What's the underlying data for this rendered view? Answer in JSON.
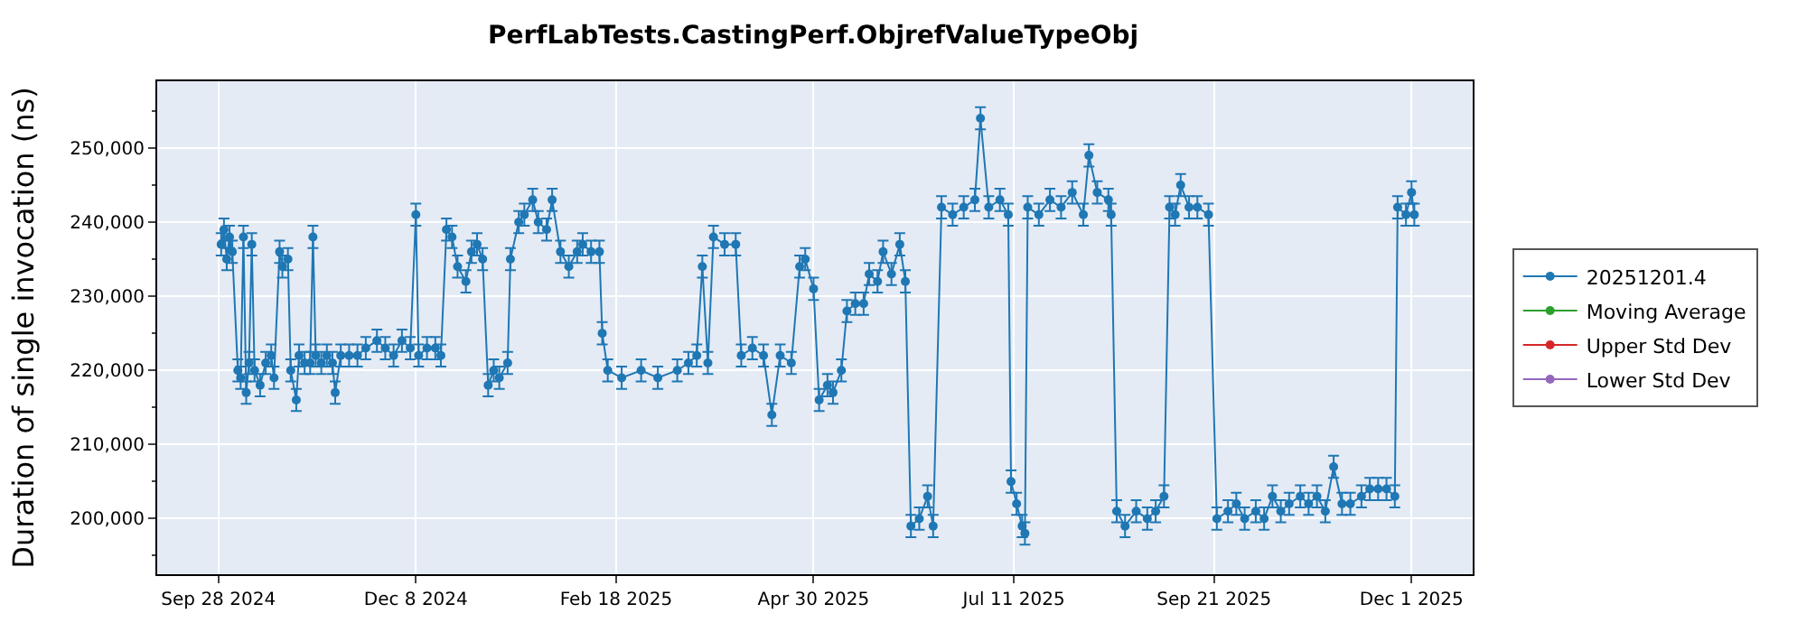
{
  "chart_data": {
    "type": "line",
    "title": "PerfLabTests.CastingPerf.ObjrefValueTypeObj",
    "ylabel": "Duration of single invocation (ns)",
    "x": [
      "2024-09-29",
      "2024-09-30",
      "2024-10-01",
      "2024-10-02",
      "2024-10-03",
      "2024-10-05",
      "2024-10-06",
      "2024-10-07",
      "2024-10-08",
      "2024-10-09",
      "2024-10-10",
      "2024-10-11",
      "2024-10-13",
      "2024-10-15",
      "2024-10-17",
      "2024-10-18",
      "2024-10-20",
      "2024-10-21",
      "2024-10-23",
      "2024-10-24",
      "2024-10-26",
      "2024-10-27",
      "2024-10-29",
      "2024-10-31",
      "2024-11-01",
      "2024-11-02",
      "2024-11-04",
      "2024-11-06",
      "2024-11-08",
      "2024-11-09",
      "2024-11-11",
      "2024-11-14",
      "2024-11-17",
      "2024-11-20",
      "2024-11-24",
      "2024-11-27",
      "2024-11-30",
      "2024-12-03",
      "2024-12-06",
      "2024-12-08",
      "2024-12-09",
      "2024-12-12",
      "2024-12-15",
      "2024-12-17",
      "2024-12-19",
      "2024-12-21",
      "2024-12-23",
      "2024-12-26",
      "2024-12-28",
      "2024-12-30",
      "2025-01-01",
      "2025-01-03",
      "2025-01-05",
      "2025-01-07",
      "2025-01-10",
      "2025-01-11",
      "2025-01-14",
      "2025-01-16",
      "2025-01-19",
      "2025-01-21",
      "2025-01-24",
      "2025-01-26",
      "2025-01-29",
      "2025-02-01",
      "2025-02-04",
      "2025-02-06",
      "2025-02-09",
      "2025-02-12",
      "2025-02-13",
      "2025-02-15",
      "2025-02-20",
      "2025-02-27",
      "2025-03-05",
      "2025-03-12",
      "2025-03-16",
      "2025-03-19",
      "2025-03-21",
      "2025-03-23",
      "2025-03-25",
      "2025-03-29",
      "2025-04-02",
      "2025-04-04",
      "2025-04-08",
      "2025-04-12",
      "2025-04-15",
      "2025-04-18",
      "2025-04-22",
      "2025-04-25",
      "2025-04-27",
      "2025-04-30",
      "2025-05-02",
      "2025-05-05",
      "2025-05-07",
      "2025-05-10",
      "2025-05-12",
      "2025-05-15",
      "2025-05-18",
      "2025-05-20",
      "2025-05-23",
      "2025-05-25",
      "2025-05-28",
      "2025-05-31",
      "2025-06-02",
      "2025-06-04",
      "2025-06-07",
      "2025-06-10",
      "2025-06-12",
      "2025-06-15",
      "2025-06-19",
      "2025-06-23",
      "2025-06-27",
      "2025-06-29",
      "2025-07-02",
      "2025-07-06",
      "2025-07-09",
      "2025-07-10",
      "2025-07-12",
      "2025-07-14",
      "2025-07-15",
      "2025-07-16",
      "2025-07-20",
      "2025-07-24",
      "2025-07-28",
      "2025-08-01",
      "2025-08-05",
      "2025-08-07",
      "2025-08-10",
      "2025-08-14",
      "2025-08-15",
      "2025-08-17",
      "2025-08-20",
      "2025-08-24",
      "2025-08-28",
      "2025-08-31",
      "2025-09-03",
      "2025-09-05",
      "2025-09-07",
      "2025-09-09",
      "2025-09-12",
      "2025-09-15",
      "2025-09-19",
      "2025-09-22",
      "2025-09-26",
      "2025-09-29",
      "2025-10-02",
      "2025-10-06",
      "2025-10-09",
      "2025-10-12",
      "2025-10-15",
      "2025-10-18",
      "2025-10-22",
      "2025-10-25",
      "2025-10-28",
      "2025-10-31",
      "2025-11-03",
      "2025-11-06",
      "2025-11-09",
      "2025-11-13",
      "2025-11-16",
      "2025-11-19",
      "2025-11-22",
      "2025-11-25",
      "2025-11-26",
      "2025-11-29",
      "2025-12-01",
      "2025-12-02"
    ],
    "series": [
      {
        "name": "20251201.4",
        "color": "#1f77b4",
        "values": [
          237000,
          239000,
          235000,
          238000,
          236000,
          220000,
          219000,
          238000,
          217000,
          221000,
          237000,
          220000,
          218000,
          221000,
          222000,
          219000,
          236000,
          234000,
          235000,
          220000,
          216000,
          222000,
          221000,
          221000,
          238000,
          222000,
          221000,
          222000,
          221000,
          217000,
          222000,
          222000,
          222000,
          223000,
          224000,
          223000,
          222000,
          224000,
          223000,
          241000,
          222000,
          223000,
          223000,
          222000,
          239000,
          238000,
          234000,
          232000,
          236000,
          237000,
          235000,
          218000,
          220000,
          219000,
          221000,
          235000,
          240000,
          241000,
          243000,
          240000,
          239000,
          243000,
          236000,
          234000,
          236000,
          237000,
          236000,
          236000,
          225000,
          220000,
          219000,
          220000,
          219000,
          220000,
          221000,
          222000,
          234000,
          221000,
          238000,
          237000,
          237000,
          222000,
          223000,
          222000,
          214000,
          222000,
          221000,
          234000,
          235000,
          231000,
          216000,
          218000,
          217000,
          220000,
          228000,
          229000,
          229000,
          233000,
          232000,
          236000,
          233000,
          237000,
          232000,
          199000,
          200000,
          203000,
          199000,
          242000,
          241000,
          242000,
          243000,
          254000,
          242000,
          243000,
          241000,
          205000,
          202000,
          199000,
          198000,
          242000,
          241000,
          243000,
          242000,
          244000,
          241000,
          249000,
          244000,
          243000,
          241000,
          201000,
          199000,
          201000,
          200000,
          201000,
          203000,
          242000,
          241000,
          245000,
          242000,
          242000,
          241000,
          200000,
          201000,
          202000,
          200000,
          201000,
          200000,
          203000,
          201000,
          202000,
          203000,
          202000,
          203000,
          201000,
          207000,
          202000,
          202000,
          203000,
          204000,
          204000,
          204000,
          203000,
          242000,
          241000,
          244000,
          241000
        ],
        "errors": [
          1500,
          1500,
          1500,
          1500,
          1500,
          1500,
          1500,
          1500,
          1500,
          1500,
          1500,
          1500,
          1500,
          1500,
          1500,
          1500,
          1500,
          1500,
          1500,
          1500,
          1500,
          1500,
          1500,
          1500,
          1500,
          1500,
          1500,
          1500,
          1500,
          1500,
          1500,
          1500,
          1500,
          1500,
          1500,
          1500,
          1500,
          1500,
          1500,
          1500,
          1500,
          1500,
          1500,
          1500,
          1500,
          1500,
          1500,
          1500,
          1500,
          1500,
          1500,
          1500,
          1500,
          1500,
          1500,
          1500,
          1500,
          1500,
          1500,
          1500,
          1500,
          1500,
          1500,
          1500,
          1500,
          1500,
          1500,
          1500,
          1500,
          1500,
          1500,
          1500,
          1500,
          1500,
          1500,
          1500,
          1500,
          1500,
          1500,
          1500,
          1500,
          1500,
          1500,
          1500,
          1500,
          1500,
          1500,
          1500,
          1500,
          1500,
          1500,
          1500,
          1500,
          1500,
          1500,
          1500,
          1500,
          1500,
          1500,
          1500,
          1500,
          1500,
          1500,
          1500,
          1500,
          1500,
          1500,
          1500,
          1500,
          1500,
          1500,
          1500,
          1500,
          1500,
          1500,
          1500,
          1500,
          1500,
          1500,
          1500,
          1500,
          1500,
          1500,
          1500,
          1500,
          1500,
          1500,
          1500,
          1500,
          1500,
          1500,
          1500,
          1500,
          1500,
          1500,
          1500,
          1500,
          1500,
          1500,
          1500,
          1500,
          1500,
          1500,
          1500,
          1500,
          1500,
          1500,
          1500,
          1500,
          1500,
          1500,
          1500,
          1500,
          1500,
          1500,
          1500,
          1500,
          1500,
          1500,
          1500,
          1500,
          1500,
          1500,
          1500,
          1500,
          1500
        ]
      },
      {
        "name": "Moving Average",
        "color": "#2ca02c",
        "values": [
          null,
          null,
          null,
          null,
          null,
          null,
          null,
          null,
          null,
          null,
          null,
          null,
          null,
          null,
          null,
          null,
          null,
          null,
          null,
          null,
          null,
          null,
          null,
          null,
          null,
          null,
          null,
          null,
          null,
          null,
          null,
          null,
          null,
          null,
          null,
          null,
          null,
          null,
          null,
          null,
          null,
          null,
          null,
          null,
          null,
          null,
          null,
          null,
          null,
          null,
          null,
          null,
          null,
          null,
          null,
          null,
          null,
          null,
          null,
          null,
          null,
          null,
          null,
          null,
          null,
          null,
          null,
          null,
          null,
          null,
          null,
          null,
          null,
          null,
          null,
          null,
          null,
          null,
          null,
          null,
          null,
          null,
          null,
          null,
          null,
          null,
          null,
          null,
          null,
          null,
          null,
          null,
          null,
          null,
          null,
          null,
          null,
          null,
          null,
          null,
          null,
          null,
          null,
          null,
          null,
          null,
          null,
          null,
          null,
          null,
          null,
          null,
          null,
          null,
          null,
          null,
          null,
          null,
          null,
          null,
          null,
          null,
          null,
          null,
          null,
          null,
          null,
          null,
          null,
          null,
          null,
          null,
          null,
          null,
          null,
          null,
          null,
          null,
          null,
          null,
          null,
          null,
          null,
          null,
          null,
          null,
          null,
          null,
          null,
          null,
          null,
          null,
          null,
          null,
          null,
          null,
          null,
          null,
          null,
          null,
          null,
          null,
          null,
          null,
          null,
          null
        ]
      },
      {
        "name": "Upper Std Dev",
        "color": "#d62728",
        "values": [
          null,
          null,
          null,
          null,
          null,
          null,
          null,
          null,
          null,
          null,
          null,
          null,
          null,
          null,
          null,
          null,
          null,
          null,
          null,
          null,
          null,
          null,
          null,
          null,
          null,
          null,
          null,
          null,
          null,
          null,
          null,
          null,
          null,
          null,
          null,
          null,
          null,
          null,
          null,
          null,
          null,
          null,
          null,
          null,
          null,
          null,
          null,
          null,
          null,
          null,
          null,
          null,
          null,
          null,
          null,
          null,
          null,
          null,
          null,
          null,
          null,
          null,
          null,
          null,
          null,
          null,
          null,
          null,
          null,
          null,
          null,
          null,
          null,
          null,
          null,
          null,
          null,
          null,
          null,
          null,
          null,
          null,
          null,
          null,
          null,
          null,
          null,
          null,
          null,
          null,
          null,
          null,
          null,
          null,
          null,
          null,
          null,
          null,
          null,
          null,
          null,
          null,
          null,
          null,
          null,
          null,
          null,
          null,
          null,
          null,
          null,
          null,
          null,
          null,
          null,
          null,
          null,
          null,
          null,
          null,
          null,
          null,
          null,
          null,
          null,
          null,
          null,
          null,
          null,
          null,
          null,
          null,
          null,
          null,
          null,
          null,
          null,
          null,
          null,
          null,
          null,
          null,
          null,
          null,
          null,
          null,
          null,
          null,
          null,
          null,
          null,
          null,
          null,
          null,
          null,
          null,
          null,
          null,
          null,
          null,
          null,
          null,
          null,
          null,
          null,
          null
        ]
      },
      {
        "name": "Lower Std Dev",
        "color": "#9467bd",
        "values": [
          null,
          null,
          null,
          null,
          null,
          null,
          null,
          null,
          null,
          null,
          null,
          null,
          null,
          null,
          null,
          null,
          null,
          null,
          null,
          null,
          null,
          null,
          null,
          null,
          null,
          null,
          null,
          null,
          null,
          null,
          null,
          null,
          null,
          null,
          null,
          null,
          null,
          null,
          null,
          null,
          null,
          null,
          null,
          null,
          null,
          null,
          null,
          null,
          null,
          null,
          null,
          null,
          null,
          null,
          null,
          null,
          null,
          null,
          null,
          null,
          null,
          null,
          null,
          null,
          null,
          null,
          null,
          null,
          null,
          null,
          null,
          null,
          null,
          null,
          null,
          null,
          null,
          null,
          null,
          null,
          null,
          null,
          null,
          null,
          null,
          null,
          null,
          null,
          null,
          null,
          null,
          null,
          null,
          null,
          null,
          null,
          null,
          null,
          null,
          null,
          null,
          null,
          null,
          null,
          null,
          null,
          null,
          null,
          null,
          null,
          null,
          null,
          null,
          null,
          null,
          null,
          null,
          null,
          null,
          null,
          null,
          null,
          null,
          null,
          null,
          null,
          null,
          null,
          null,
          null,
          null,
          null,
          null,
          null,
          null,
          null,
          null,
          null,
          null,
          null,
          null,
          null,
          null,
          null,
          null,
          null,
          null,
          null,
          null,
          null,
          null,
          null,
          null,
          null,
          null,
          null,
          null,
          null,
          null,
          null,
          null,
          null,
          null,
          null,
          null,
          null
        ]
      }
    ],
    "xlim": [
      "2024-09-06",
      "2025-12-23"
    ],
    "xticks": [
      {
        "value": "2024-09-28",
        "label": "Sep 28 2024"
      },
      {
        "value": "2024-12-08",
        "label": "Dec 8 2024"
      },
      {
        "value": "2025-02-18",
        "label": "Feb 18 2025"
      },
      {
        "value": "2025-04-30",
        "label": "Apr 30 2025"
      },
      {
        "value": "2025-07-11",
        "label": "Jul 11 2025"
      },
      {
        "value": "2025-09-21",
        "label": "Sep 21 2025"
      },
      {
        "value": "2025-12-01",
        "label": "Dec 1 2025"
      }
    ],
    "ylim": [
      192500,
      259000
    ],
    "yticks": [
      {
        "value": 200000,
        "label": "200,000"
      },
      {
        "value": 210000,
        "label": "210,000"
      },
      {
        "value": 220000,
        "label": "220,000"
      },
      {
        "value": 230000,
        "label": "230,000"
      },
      {
        "value": 240000,
        "label": "240,000"
      },
      {
        "value": 250000,
        "label": "250,000"
      }
    ],
    "grid": true,
    "legend": "right",
    "marker": "circle",
    "line_style": "solid"
  }
}
